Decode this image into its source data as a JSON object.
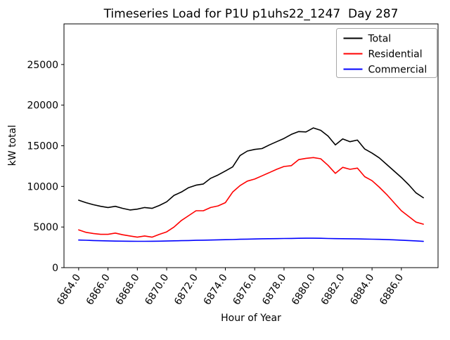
{
  "chart_data": {
    "type": "line",
    "title": "Timeseries Load for P1U p1uhs22_1247  Day 287",
    "xlabel": "Hour of Year",
    "ylabel": "kW total",
    "grid": false,
    "legend_position": "upper right",
    "xlim": [
      6863.0,
      6888.5
    ],
    "ylim": [
      0,
      30000
    ],
    "x_ticks": [
      6864,
      6866,
      6868,
      6870,
      6872,
      6874,
      6876,
      6878,
      6880,
      6882,
      6884,
      6886
    ],
    "x_tick_labels": [
      "6864.0",
      "6866.0",
      "6868.0",
      "6870.0",
      "6872.0",
      "6874.0",
      "6876.0",
      "6878.0",
      "6880.0",
      "6882.0",
      "6884.0",
      "6886.0"
    ],
    "y_ticks": [
      0,
      5000,
      10000,
      15000,
      20000,
      25000
    ],
    "y_tick_labels": [
      "0",
      "5000",
      "10000",
      "15000",
      "20000",
      "25000"
    ],
    "x": [
      6864.0,
      6864.5,
      6865.0,
      6865.5,
      6866.0,
      6866.5,
      6867.0,
      6867.5,
      6868.0,
      6868.5,
      6869.0,
      6869.5,
      6870.0,
      6870.5,
      6871.0,
      6871.5,
      6872.0,
      6872.5,
      6873.0,
      6873.5,
      6874.0,
      6874.5,
      6875.0,
      6875.5,
      6876.0,
      6876.5,
      6877.0,
      6877.5,
      6878.0,
      6878.5,
      6879.0,
      6879.5,
      6880.0,
      6880.5,
      6881.0,
      6881.5,
      6882.0,
      6882.5,
      6883.0,
      6883.5,
      6884.0,
      6884.5,
      6885.0,
      6885.5,
      6886.0,
      6886.5,
      6887.0,
      6887.5
    ],
    "series": [
      {
        "name": "Total",
        "color": "#000000",
        "values": [
          8300,
          8000,
          7750,
          7550,
          7400,
          7550,
          7300,
          7100,
          7200,
          7400,
          7300,
          7650,
          8100,
          8900,
          9300,
          9850,
          10150,
          10300,
          11000,
          11400,
          11900,
          12400,
          13800,
          14350,
          14550,
          14650,
          15100,
          15500,
          15900,
          16400,
          16750,
          16700,
          17200,
          16900,
          16200,
          15100,
          15850,
          15500,
          15700,
          14600,
          14100,
          13500,
          12700,
          11900,
          11100,
          10200,
          9200,
          8600
        ]
      },
      {
        "name": "Residential",
        "color": "#ff0000",
        "values": [
          4650,
          4350,
          4200,
          4100,
          4100,
          4250,
          4050,
          3900,
          3750,
          3900,
          3750,
          4100,
          4400,
          5000,
          5800,
          6400,
          7000,
          7000,
          7400,
          7600,
          8000,
          9300,
          10100,
          10650,
          10900,
          11300,
          11700,
          12100,
          12450,
          12550,
          13300,
          13450,
          13550,
          13400,
          12600,
          11600,
          12350,
          12100,
          12250,
          11200,
          10700,
          9900,
          9000,
          8000,
          7000,
          6300,
          5600,
          5350
        ]
      },
      {
        "name": "Commercial",
        "color": "#0000ff",
        "values": [
          3400,
          3370,
          3340,
          3310,
          3290,
          3270,
          3260,
          3250,
          3240,
          3240,
          3250,
          3260,
          3280,
          3300,
          3320,
          3340,
          3360,
          3380,
          3400,
          3420,
          3440,
          3460,
          3490,
          3510,
          3530,
          3550,
          3560,
          3570,
          3590,
          3600,
          3610,
          3620,
          3620,
          3610,
          3590,
          3570,
          3560,
          3550,
          3540,
          3520,
          3500,
          3480,
          3450,
          3420,
          3380,
          3340,
          3290,
          3230
        ]
      }
    ]
  }
}
